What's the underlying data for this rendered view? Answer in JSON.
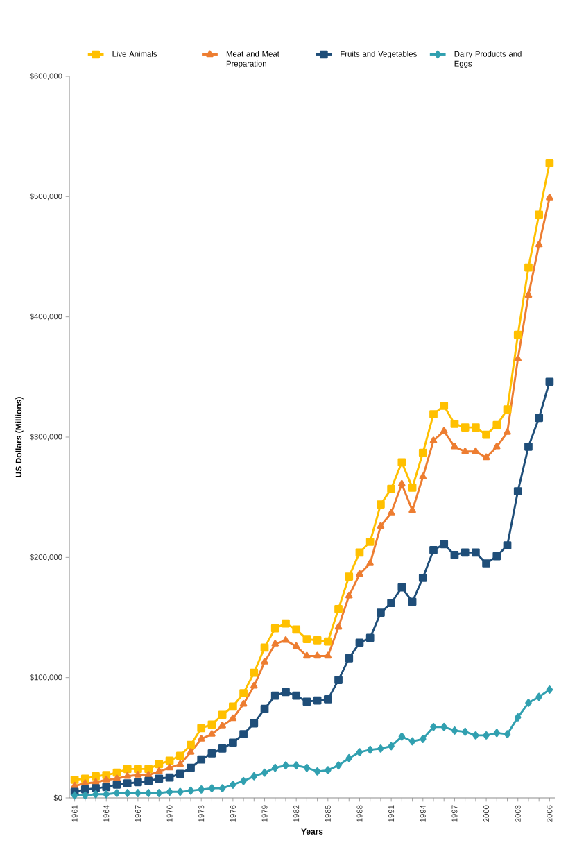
{
  "chart_data": {
    "type": "line",
    "xlabel": "Years",
    "ylabel": "US Dollars (Millions)",
    "x": [
      1961,
      1962,
      1963,
      1964,
      1965,
      1966,
      1967,
      1968,
      1969,
      1970,
      1971,
      1972,
      1973,
      1974,
      1975,
      1976,
      1977,
      1978,
      1979,
      1980,
      1981,
      1982,
      1983,
      1984,
      1985,
      1986,
      1987,
      1988,
      1989,
      1990,
      1991,
      1992,
      1993,
      1994,
      1995,
      1996,
      1997,
      1998,
      1999,
      2000,
      2001,
      2002,
      2003,
      2004,
      2005,
      2006
    ],
    "xlim": [
      1960.5,
      2006.5
    ],
    "xticks": [
      1961,
      1964,
      1967,
      1970,
      1973,
      1976,
      1979,
      1982,
      1985,
      1988,
      1991,
      1994,
      1997,
      2000,
      2003,
      2006
    ],
    "ylim": [
      0,
      600000
    ],
    "yticks": [
      {
        "value": 0,
        "label": "$0"
      },
      {
        "value": 100000,
        "label": "$100,000"
      },
      {
        "value": 200000,
        "label": "$200,000"
      },
      {
        "value": 300000,
        "label": "$300,000"
      },
      {
        "value": 400000,
        "label": "$400,000"
      },
      {
        "value": 500000,
        "label": "$500,000"
      },
      {
        "value": 600000,
        "label": "$600,000"
      }
    ],
    "legend": "top",
    "line_style": "solid",
    "series": [
      {
        "name": "Live Animals",
        "color": "#ffc000",
        "marker": "square",
        "values": [
          15000,
          16000,
          18000,
          19000,
          21000,
          24000,
          24000,
          24000,
          28000,
          31000,
          35000,
          44000,
          58000,
          61000,
          69000,
          76000,
          87000,
          104000,
          125000,
          141000,
          145000,
          140000,
          132000,
          131000,
          130000,
          157000,
          184000,
          204000,
          213000,
          244000,
          257000,
          279000,
          258000,
          287000,
          319000,
          326000,
          311000,
          308000,
          308000,
          302000,
          310000,
          323000,
          385000,
          441000,
          485000,
          528000
        ]
      },
      {
        "name": "Meat and Meat Preparation",
        "color": "#ed7d31",
        "marker": "triangle",
        "values": [
          10000,
          12000,
          13000,
          15000,
          16000,
          18000,
          19000,
          19000,
          22000,
          25000,
          28000,
          38000,
          49000,
          53000,
          60000,
          66000,
          78000,
          93000,
          113000,
          128000,
          131000,
          126000,
          118000,
          118000,
          118000,
          142000,
          168000,
          186000,
          195000,
          226000,
          237000,
          261000,
          239000,
          267000,
          297000,
          305000,
          292000,
          288000,
          288000,
          283000,
          292000,
          304000,
          365000,
          418000,
          460000,
          499000
        ]
      },
      {
        "name": "Fruits and Vegetables",
        "color": "#1f4e79",
        "marker": "square",
        "values": [
          5000,
          7000,
          8000,
          9000,
          11000,
          12000,
          13000,
          14000,
          16000,
          17000,
          20000,
          25000,
          32000,
          37000,
          41000,
          46000,
          53000,
          62000,
          74000,
          85000,
          88000,
          85000,
          80000,
          81000,
          82000,
          98000,
          116000,
          129000,
          133000,
          154000,
          162000,
          175000,
          163000,
          183000,
          206000,
          211000,
          202000,
          204000,
          204000,
          195000,
          201000,
          210000,
          255000,
          292000,
          316000,
          346000
        ]
      },
      {
        "name": "Dairy Products and Eggs",
        "color": "#31a0b0",
        "marker": "diamond",
        "values": [
          2000,
          2000,
          3000,
          3000,
          4000,
          4000,
          4000,
          4000,
          4000,
          5000,
          5000,
          6000,
          7000,
          8000,
          8000,
          11000,
          14000,
          18000,
          21000,
          25000,
          27000,
          27000,
          25000,
          22000,
          23000,
          27000,
          33000,
          38000,
          40000,
          41000,
          43000,
          51000,
          47000,
          49000,
          59000,
          59000,
          56000,
          55000,
          52000,
          52000,
          54000,
          53000,
          67000,
          79000,
          84000,
          90000
        ]
      }
    ]
  }
}
